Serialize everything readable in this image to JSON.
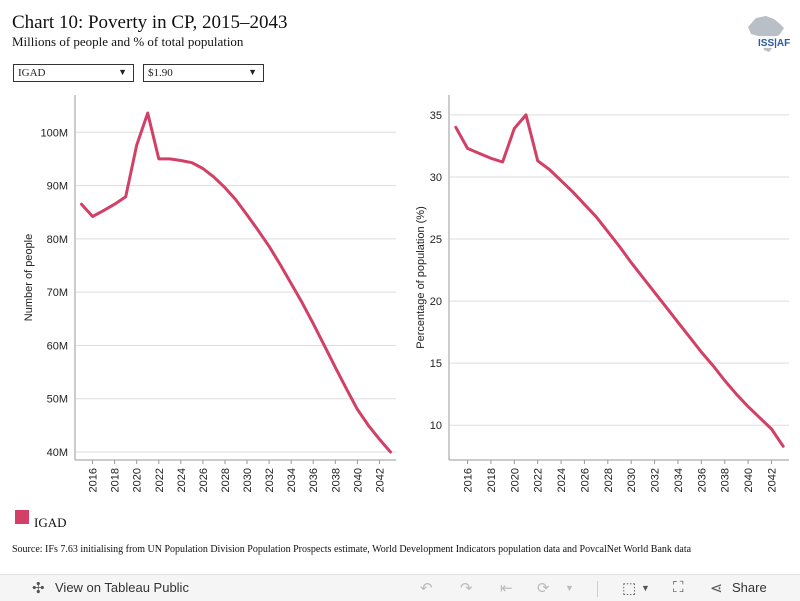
{
  "title": "Chart 10: Poverty in CP, 2015–2043",
  "subtitle": "Millions of people and % of total population",
  "logo": {
    "text": "ISS|AF"
  },
  "filters": {
    "region": "IGAD",
    "poverty_line": "$1.90"
  },
  "colors": {
    "series": "#d23f67",
    "grid": "#dddddd",
    "axis": "#999999"
  },
  "legend": {
    "label": "IGAD"
  },
  "source": "Source: IFs 7.63 initialising from UN Population Division Population Prospects estimate, World Development Indicators population data and PovcalNet World Bank data",
  "toolbar": {
    "view_label": "View on Tableau Public",
    "share_label": "Share",
    "icons": [
      "tableau-logo-icon",
      "undo-icon",
      "redo-icon",
      "revert-icon",
      "refresh-icon",
      "pause-icon",
      "download-icon",
      "fullscreen-icon",
      "share-icon"
    ]
  },
  "chart_data": [
    {
      "type": "line",
      "title": "",
      "xlabel": "",
      "ylabel": "Number of people",
      "ylim": [
        38.5,
        107
      ],
      "xlim": [
        2014.5,
        2043.5
      ],
      "x_ticks": [
        "2016",
        "2018",
        "2020",
        "2022",
        "2024",
        "2026",
        "2028",
        "2030",
        "2032",
        "2034",
        "2036",
        "2038",
        "2040",
        "2042"
      ],
      "y_ticks": [
        "40M",
        "50M",
        "60M",
        "70M",
        "80M",
        "90M",
        "100M"
      ],
      "y_tick_values": [
        40,
        50,
        60,
        70,
        80,
        90,
        100
      ],
      "series": [
        {
          "name": "IGAD",
          "x": [
            2015,
            2016,
            2017,
            2018,
            2019,
            2020,
            2021,
            2022,
            2023,
            2024,
            2025,
            2026,
            2027,
            2028,
            2029,
            2030,
            2031,
            2032,
            2033,
            2034,
            2035,
            2036,
            2037,
            2038,
            2039,
            2040,
            2041,
            2042,
            2043
          ],
          "values": [
            86.5,
            84.2,
            85.3,
            86.5,
            87.9,
            97.6,
            103.6,
            95.0,
            95.0,
            94.7,
            94.3,
            93.2,
            91.6,
            89.6,
            87.3,
            84.5,
            81.6,
            78.6,
            75.2,
            71.6,
            68.0,
            64.1,
            60.0,
            55.9,
            51.9,
            48.0,
            45.0,
            42.4,
            40.0
          ]
        }
      ],
      "grid": true
    },
    {
      "type": "line",
      "title": "",
      "xlabel": "",
      "ylabel": "Percentage of population (%)",
      "ylim": [
        7.2,
        36.6
      ],
      "xlim": [
        2014.5,
        2043.5
      ],
      "x_ticks": [
        "2016",
        "2018",
        "2020",
        "2022",
        "2024",
        "2026",
        "2028",
        "2030",
        "2032",
        "2034",
        "2036",
        "2038",
        "2040",
        "2042"
      ],
      "y_ticks": [
        "10",
        "15",
        "20",
        "25",
        "30",
        "35"
      ],
      "y_tick_values": [
        10,
        15,
        20,
        25,
        30,
        35
      ],
      "series": [
        {
          "name": "IGAD",
          "x": [
            2015,
            2016,
            2017,
            2018,
            2019,
            2020,
            2021,
            2022,
            2023,
            2024,
            2025,
            2026,
            2027,
            2028,
            2029,
            2030,
            2031,
            2032,
            2033,
            2034,
            2035,
            2036,
            2037,
            2038,
            2039,
            2040,
            2041,
            2042,
            2043
          ],
          "values": [
            34.0,
            32.3,
            31.9,
            31.5,
            31.2,
            33.9,
            35.0,
            31.3,
            30.6,
            29.7,
            28.8,
            27.8,
            26.8,
            25.6,
            24.4,
            23.1,
            21.9,
            20.7,
            19.5,
            18.3,
            17.1,
            15.9,
            14.8,
            13.6,
            12.5,
            11.5,
            10.6,
            9.7,
            8.3
          ]
        }
      ],
      "grid": true
    }
  ]
}
